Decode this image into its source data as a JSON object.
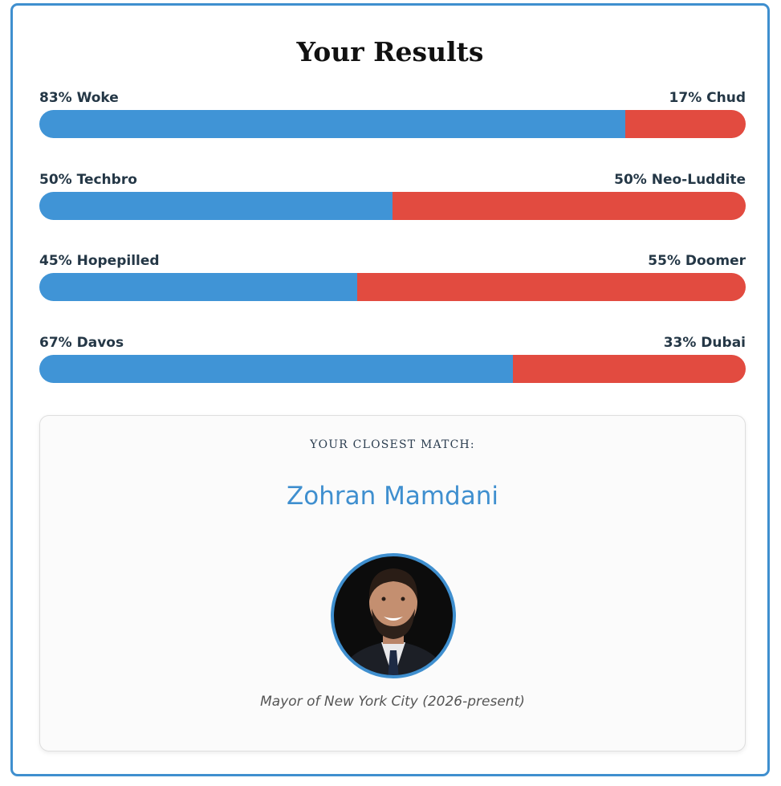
{
  "title": "Your Results",
  "results": [
    {
      "left": {
        "label": "83% Woke",
        "value": 83,
        "color": "#4094d6"
      },
      "right": {
        "label": "17% Chud",
        "value": 17,
        "color": "#e24b40"
      }
    },
    {
      "left": {
        "label": "50% Techbro",
        "value": 50,
        "color": "#4094d6"
      },
      "right": {
        "label": "50% Neo-Luddite",
        "value": 50,
        "color": "#e24b40"
      }
    },
    {
      "left": {
        "label": "45% Hopepilled",
        "value": 45,
        "color": "#4094d6"
      },
      "right": {
        "label": "55% Doomer",
        "value": 55,
        "color": "#e24b40"
      }
    },
    {
      "left": {
        "label": "67% Davos",
        "value": 67,
        "color": "#4094d6"
      },
      "right": {
        "label": "33% Dubai",
        "value": 33,
        "color": "#e24b40"
      }
    }
  ],
  "match": {
    "heading": "YOUR CLOSEST MATCH:",
    "name": "Zohran Mamdani",
    "caption": "Mayor of New York City (2026-present)"
  }
}
